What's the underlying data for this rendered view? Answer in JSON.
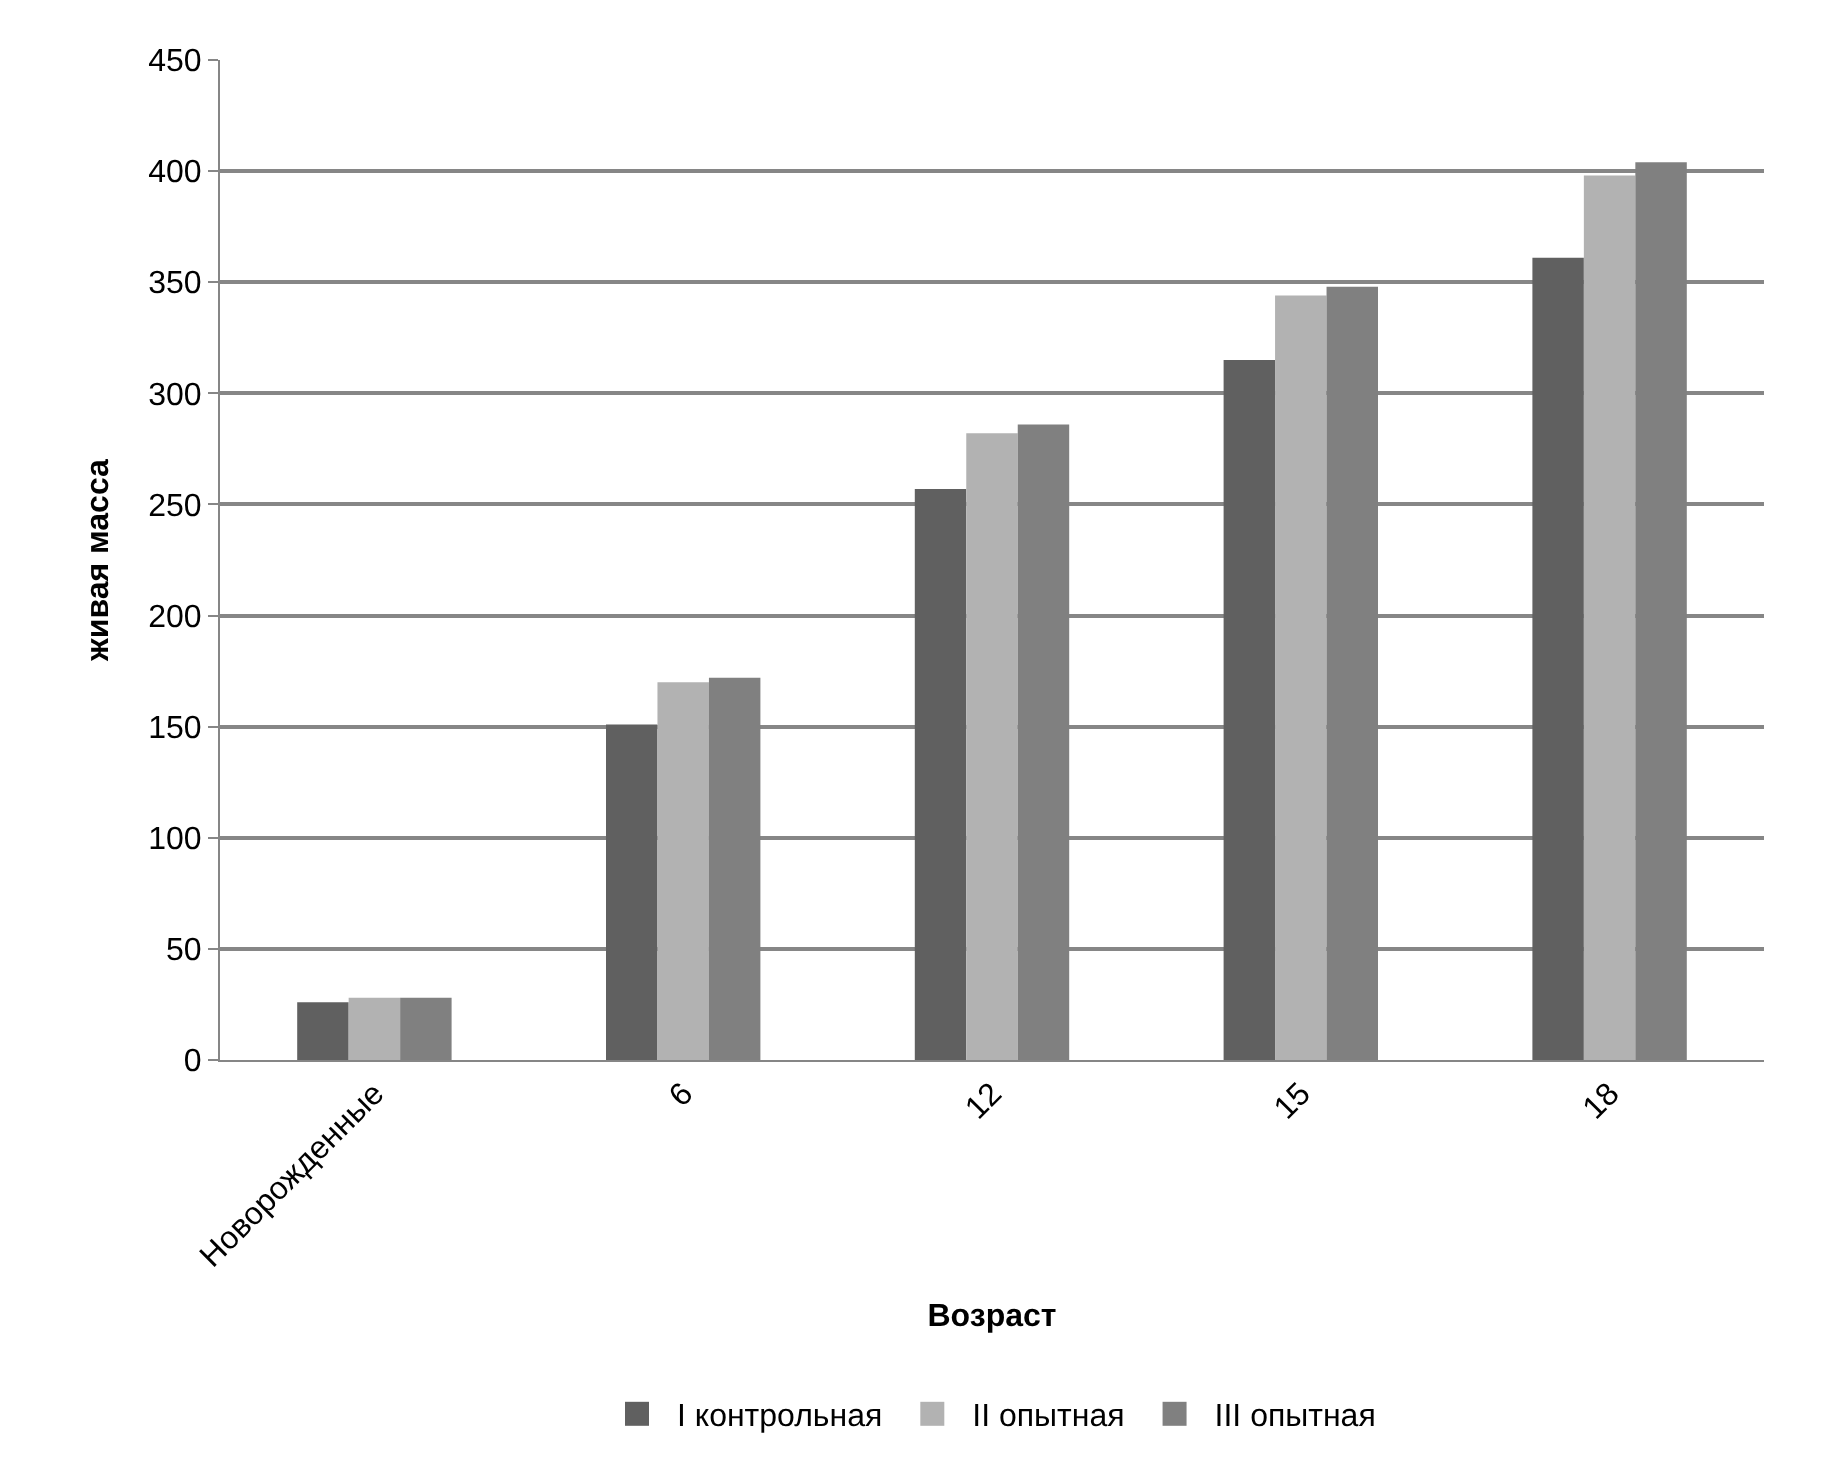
{
  "chart_data": {
    "type": "bar",
    "xlabel": "Возраст",
    "ylabel": "живая масса",
    "categories": [
      "Новорожденные",
      "6",
      "12",
      "15",
      "18"
    ],
    "series": [
      {
        "name": "I контрольная",
        "color": "#606060",
        "values": [
          26,
          151,
          257,
          315,
          361
        ]
      },
      {
        "name": "II опытная",
        "color": "#b2b2b2",
        "values": [
          28,
          170,
          282,
          344,
          398
        ]
      },
      {
        "name": "III опытная",
        "color": "#808080",
        "values": [
          28,
          172,
          286,
          348,
          404
        ]
      }
    ],
    "ylim": [
      0,
      450
    ],
    "yticks": [
      0,
      50,
      100,
      150,
      200,
      250,
      300,
      350,
      400,
      450
    ],
    "grid": "y",
    "legend": "bottom"
  }
}
